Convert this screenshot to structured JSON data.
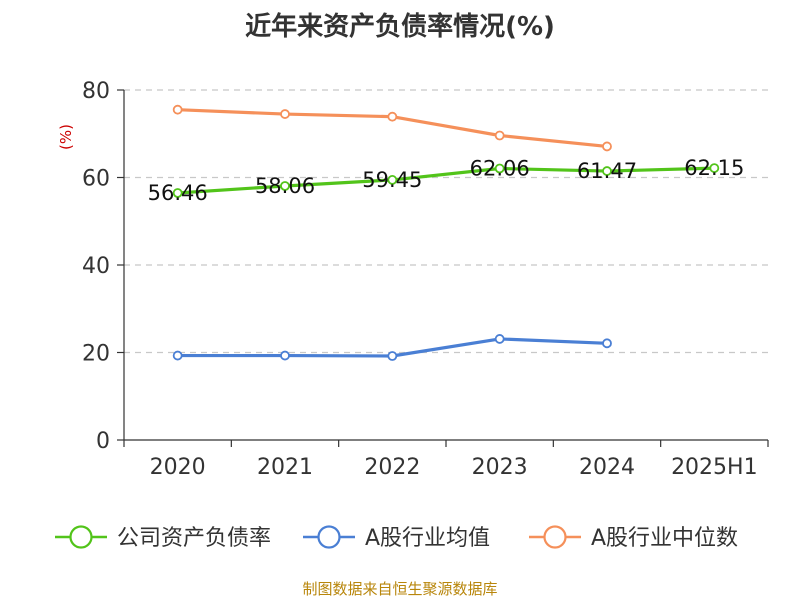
{
  "chart_data": {
    "type": "line",
    "title": "近年来资产负债率情况(%)",
    "ylabel": "(%)",
    "xlabel": "",
    "categories": [
      "2020",
      "2021",
      "2022",
      "2023",
      "2024",
      "2025H1"
    ],
    "ylim": [
      0,
      80
    ],
    "yticks": [
      0,
      20,
      40,
      60,
      80
    ],
    "grid": true,
    "legend_position": "bottom",
    "series": [
      {
        "name": "公司资产负债率",
        "color": "#52c41a",
        "values": [
          56.46,
          58.06,
          59.45,
          62.06,
          61.47,
          62.15
        ],
        "labels": [
          "56.46",
          "58.06",
          "59.45",
          "62.06",
          "61.47",
          "62.15"
        ]
      },
      {
        "name": "A股行业均值",
        "color": "#4a7fd4",
        "values": [
          19.3,
          19.3,
          19.2,
          23.1,
          22.1,
          null
        ]
      },
      {
        "name": "A股行业中位数",
        "color": "#f5905a",
        "values": [
          75.5,
          74.5,
          73.9,
          69.6,
          67.1,
          null
        ]
      }
    ]
  },
  "source": "制图数据来自恒生聚源数据库"
}
